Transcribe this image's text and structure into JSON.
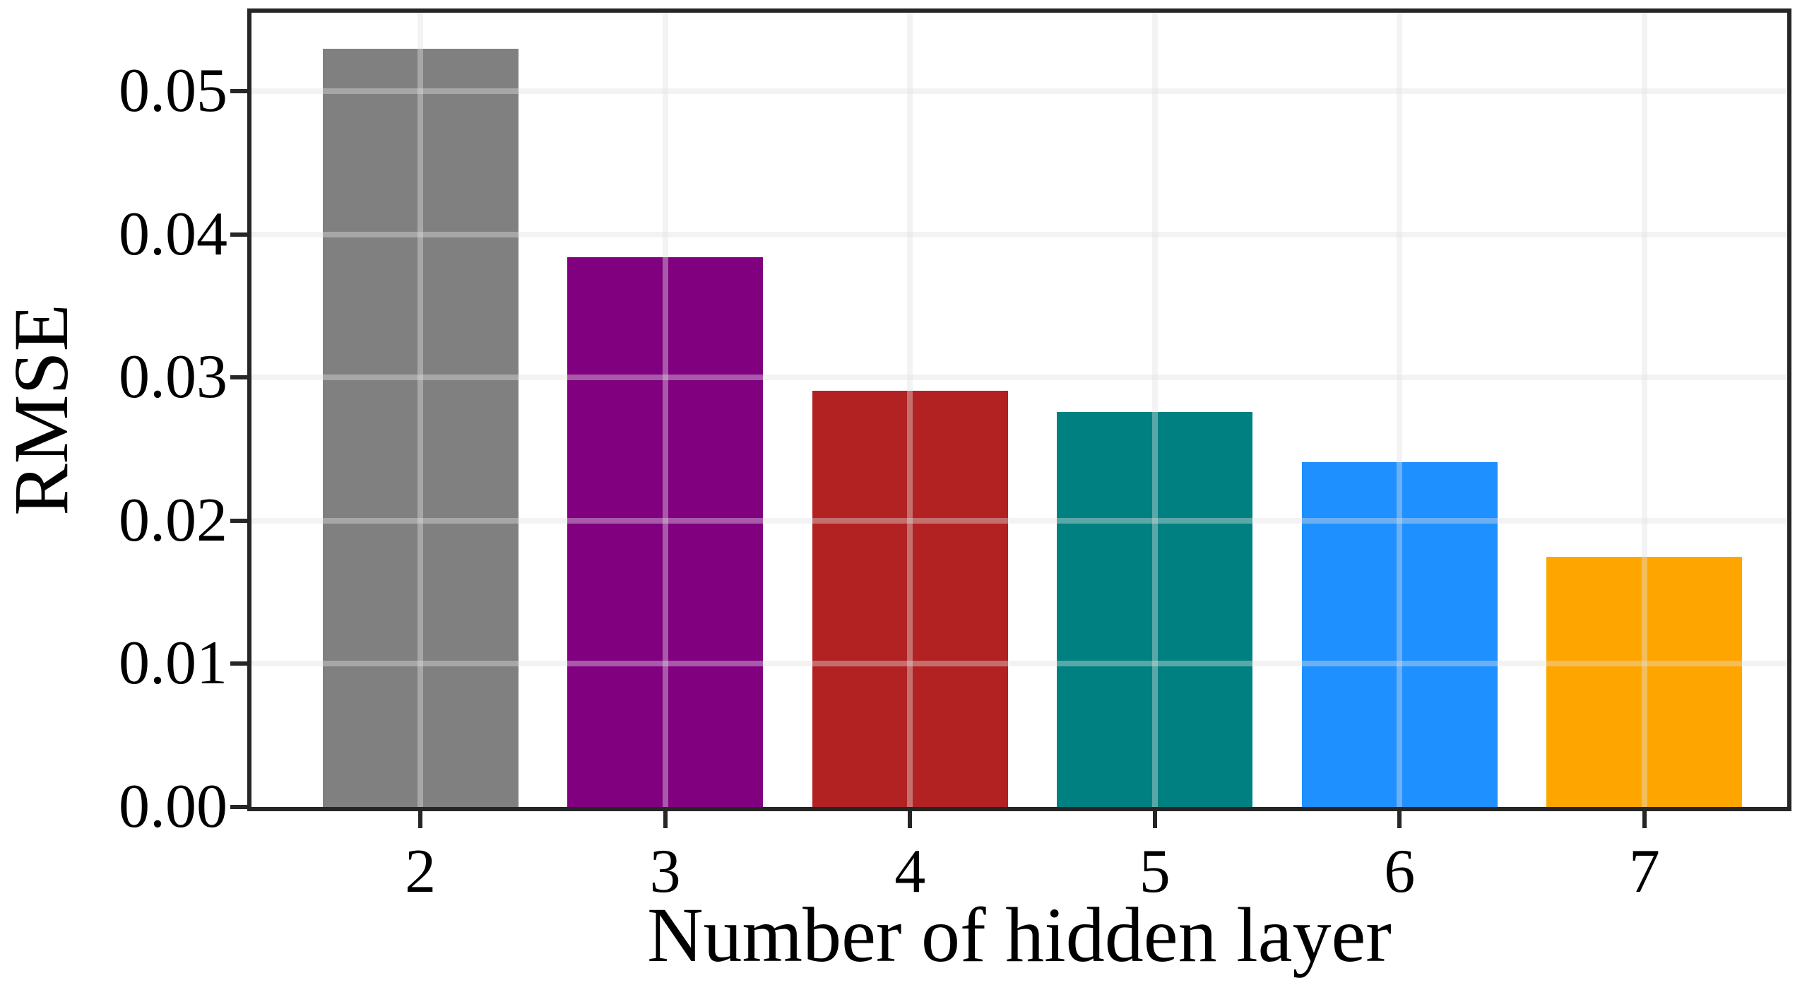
{
  "chart_data": {
    "type": "bar",
    "title": "",
    "xlabel": "Number of hidden layer",
    "ylabel": "RMSE",
    "categories": [
      "2",
      "3",
      "4",
      "5",
      "6",
      "7"
    ],
    "values": [
      0.053,
      0.0384,
      0.0291,
      0.0276,
      0.0241,
      0.0175
    ],
    "bar_colors": [
      "#808080",
      "#800080",
      "#B22222",
      "#008080",
      "#1E90FF",
      "#FFA500"
    ],
    "ylim": [
      0,
      0.0555
    ],
    "yticks": [
      {
        "label": "0.00",
        "value": 0.0
      },
      {
        "label": "0.01",
        "value": 0.01
      },
      {
        "label": "0.02",
        "value": 0.02
      },
      {
        "label": "0.03",
        "value": 0.03
      },
      {
        "label": "0.04",
        "value": 0.04
      },
      {
        "label": "0.05",
        "value": 0.05
      }
    ],
    "grid": "both",
    "legend_position": "none"
  },
  "colors": {
    "spine": "#262626",
    "grid": "#f3f3f3",
    "text": "#000000",
    "background": "#ffffff"
  }
}
